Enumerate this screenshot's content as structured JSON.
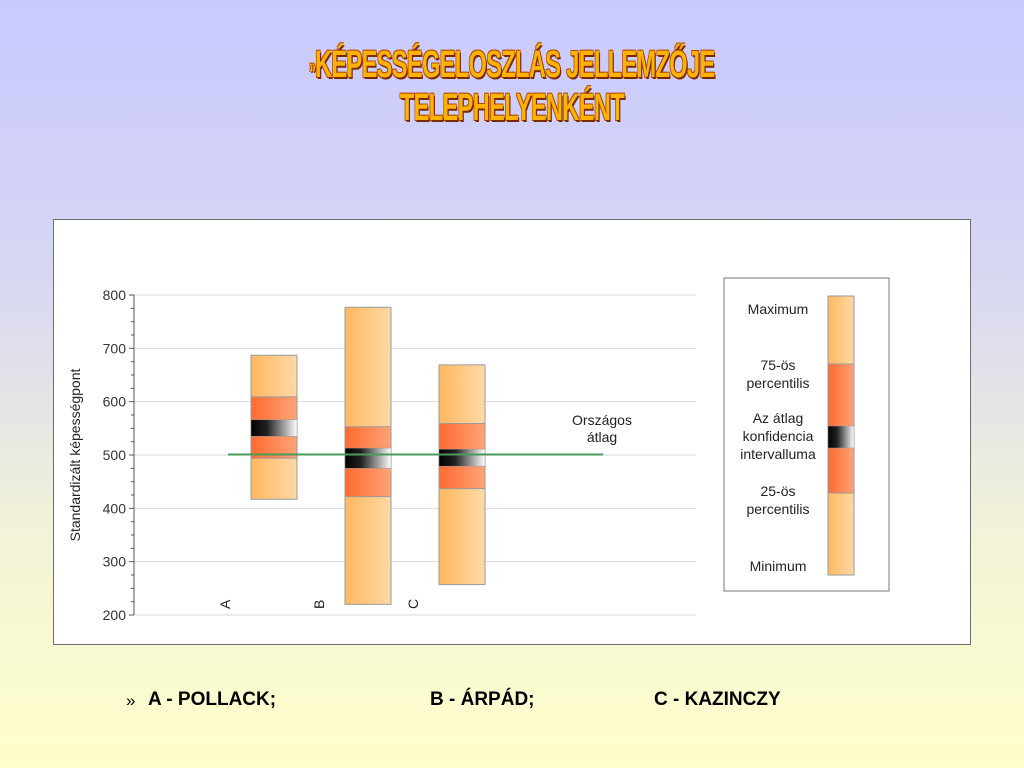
{
  "slide": {
    "title_prefix": "»",
    "title": "KÉPESSÉGELOSZLÁS JELLEMZŐJE TELEPHELYENKÉNT"
  },
  "chart_data": {
    "type": "box",
    "ylabel": "Standardizált képességpont",
    "ylim": [
      200,
      800
    ],
    "yticks": [
      200,
      300,
      400,
      500,
      600,
      700,
      800
    ],
    "grid": true,
    "categories": [
      "A",
      "B",
      "C"
    ],
    "boxes": [
      {
        "category": "A",
        "min": 417,
        "p25": 494,
        "ci_low": 535,
        "ci_high": 566,
        "p75": 609,
        "max": 687
      },
      {
        "category": "B",
        "min": 220,
        "p25": 422,
        "ci_low": 475,
        "ci_high": 513,
        "p75": 553,
        "max": 777
      },
      {
        "category": "C",
        "min": 257,
        "p25": 437,
        "ci_low": 479,
        "ci_high": 511,
        "p75": 559,
        "max": 669
      }
    ],
    "reference_line": {
      "label": "Országos átlag",
      "value": 501,
      "color": "#4a9a5a"
    },
    "colors": {
      "outer": "#ffc27a",
      "inner": "#ff8a50",
      "ci_dark": "#000000",
      "ci_light": "#ffffff"
    },
    "legend": {
      "placement": "right",
      "items": [
        "Maximum",
        "75-ös percentilis",
        "Az átlag konfidencia intervalluma",
        "25-ös percentilis",
        "Minimum"
      ]
    }
  },
  "footer": {
    "bullet": "»",
    "site_a": "A - POLLACK;",
    "site_b": "B - ÁRPÁD;",
    "site_c": "C - KAZINCZY"
  }
}
